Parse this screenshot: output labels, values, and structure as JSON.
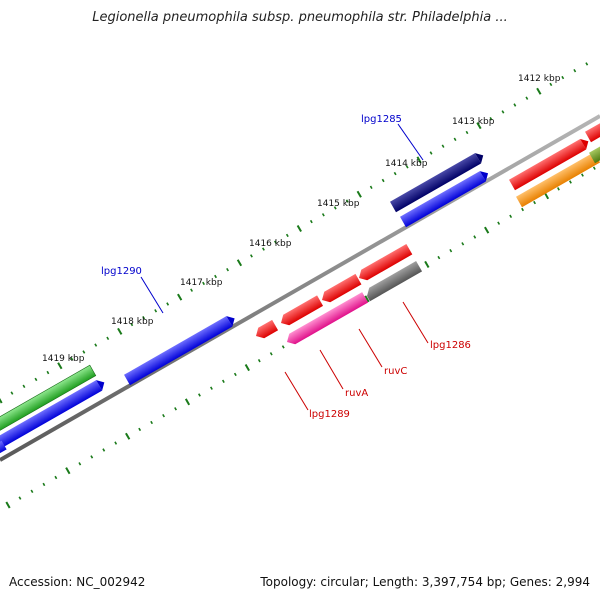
{
  "title": "Legionella pneumophila subsp. pneumophila str. Philadelphia ...",
  "footer": {
    "accession": "Accession: NC_002942",
    "summary": "Topology: circular; Length: 3,397,754 bp; Genes: 2,994"
  },
  "colors": {
    "backbone": "#777777",
    "tick": "#1a7a1a",
    "label_blue": "#0000cc",
    "label_red": "#cc0000"
  },
  "scale_labels": [
    "1412 kbp",
    "1413 kbp",
    "1414 kbp",
    "1415 kbp",
    "1416 kbp",
    "1417 kbp",
    "1418 kbp",
    "1419 kbp"
  ],
  "gene_labels": [
    {
      "text": "lpg1285",
      "strand": "forward",
      "color": "#0000cc"
    },
    {
      "text": "lpg1290",
      "strand": "forward",
      "color": "#0000cc"
    },
    {
      "text": "lpg1286",
      "strand": "reverse",
      "color": "#cc0000"
    },
    {
      "text": "ruvC",
      "strand": "reverse",
      "color": "#cc0000"
    },
    {
      "text": "ruvA",
      "strand": "reverse",
      "color": "#cc0000"
    },
    {
      "text": "lpg1289",
      "strand": "reverse",
      "color": "#cc0000"
    }
  ]
}
